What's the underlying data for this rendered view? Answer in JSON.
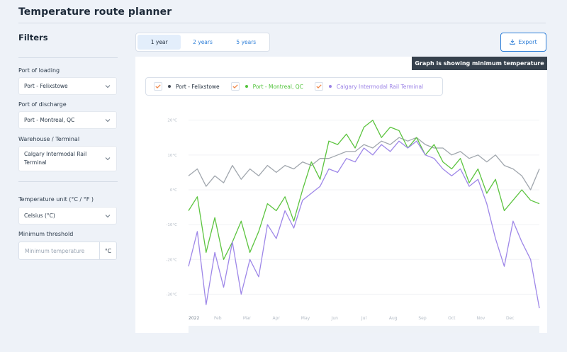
{
  "header": {
    "title": "Temperature route planner"
  },
  "sidebar": {
    "title": "Filters",
    "port_of_loading": {
      "label": "Port of loading",
      "value": "Port - Felixstowe"
    },
    "port_of_discharge": {
      "label": "Port of discharge",
      "value": "Port - Montreal, QC"
    },
    "warehouse": {
      "label": "Warehouse / Terminal",
      "value": "Calgary Intermodal Rail Terminal"
    },
    "temperature_unit": {
      "label": "Temperature unit (°C / °F )",
      "value": "Celsius (°C)"
    },
    "minimum_threshold": {
      "label": "Minimum threshold",
      "placeholder": "Minimum temperature",
      "unit": "°C"
    }
  },
  "tabs": [
    {
      "label": "1 year",
      "active": true
    },
    {
      "label": "2 years",
      "active": false
    },
    {
      "label": "5 years",
      "active": false
    }
  ],
  "export_label": "Export",
  "notice": "Graph is showing minimum temperature",
  "colors": {
    "accent": "#2f7fd8",
    "checkbox": "#f0884a"
  },
  "legend": [
    {
      "name": "Port - Felixstowe",
      "color": "#444b55",
      "text_color": "#1e2b3a"
    },
    {
      "name": "Port - Montreal, QC",
      "color": "#53c43d",
      "text_color": "#53c43d"
    },
    {
      "name": "Calgary Intermodal Rail Terminal",
      "color": "#9b82e6",
      "text_color": "#9b82e6"
    }
  ],
  "chart_data": {
    "type": "line",
    "x_labels": [
      "2022",
      "Feb",
      "Mar",
      "Apr",
      "May",
      "Jun",
      "Jul",
      "Aug",
      "Sep",
      "Oct",
      "Nov",
      "Dec"
    ],
    "y_ticks": [
      "20°C",
      "10°C",
      "0°C",
      "-10°C",
      "-20°C",
      "-30°C"
    ],
    "y_tick_values": [
      20,
      10,
      0,
      -10,
      -20,
      -30
    ],
    "ylim": [
      -35,
      24
    ],
    "x_range": [
      0,
      12
    ],
    "grid": true,
    "series": [
      {
        "name": "Port - Felixstowe",
        "color": "#a0a6ad",
        "values": [
          [
            0,
            4
          ],
          [
            0.3,
            6
          ],
          [
            0.6,
            1
          ],
          [
            0.9,
            4
          ],
          [
            1.2,
            2
          ],
          [
            1.5,
            7
          ],
          [
            1.8,
            3
          ],
          [
            2.1,
            6
          ],
          [
            2.4,
            4
          ],
          [
            2.7,
            7
          ],
          [
            3.0,
            5
          ],
          [
            3.3,
            7
          ],
          [
            3.6,
            6
          ],
          [
            3.9,
            8
          ],
          [
            4.2,
            7
          ],
          [
            4.5,
            9
          ],
          [
            4.8,
            9
          ],
          [
            5.1,
            10
          ],
          [
            5.4,
            11
          ],
          [
            5.7,
            11
          ],
          [
            6.0,
            13
          ],
          [
            6.3,
            12
          ],
          [
            6.6,
            14
          ],
          [
            6.9,
            13
          ],
          [
            7.2,
            15
          ],
          [
            7.5,
            14
          ],
          [
            7.8,
            15
          ],
          [
            8.1,
            13
          ],
          [
            8.4,
            12
          ],
          [
            8.7,
            12
          ],
          [
            9.0,
            10
          ],
          [
            9.3,
            11
          ],
          [
            9.6,
            9
          ],
          [
            9.9,
            10
          ],
          [
            10.2,
            8
          ],
          [
            10.5,
            10
          ],
          [
            10.8,
            7
          ],
          [
            11.1,
            6
          ],
          [
            11.4,
            4
          ],
          [
            11.7,
            0
          ],
          [
            12,
            6
          ]
        ]
      },
      {
        "name": "Port - Montreal, QC",
        "color": "#5cc43f",
        "values": [
          [
            0,
            -6
          ],
          [
            0.3,
            -2
          ],
          [
            0.6,
            -18
          ],
          [
            0.9,
            -8
          ],
          [
            1.2,
            -20
          ],
          [
            1.5,
            -15
          ],
          [
            1.8,
            -9
          ],
          [
            2.1,
            -18
          ],
          [
            2.4,
            -12
          ],
          [
            2.7,
            -4
          ],
          [
            3.0,
            -6
          ],
          [
            3.3,
            -2
          ],
          [
            3.6,
            -9
          ],
          [
            3.9,
            0
          ],
          [
            4.2,
            8
          ],
          [
            4.5,
            3
          ],
          [
            4.8,
            14
          ],
          [
            5.1,
            13
          ],
          [
            5.4,
            16
          ],
          [
            5.7,
            12
          ],
          [
            6.0,
            18
          ],
          [
            6.3,
            20
          ],
          [
            6.6,
            15
          ],
          [
            6.9,
            18
          ],
          [
            7.2,
            17
          ],
          [
            7.5,
            12
          ],
          [
            7.8,
            15
          ],
          [
            8.1,
            10
          ],
          [
            8.4,
            13
          ],
          [
            8.7,
            8
          ],
          [
            9.0,
            6
          ],
          [
            9.3,
            9
          ],
          [
            9.6,
            2
          ],
          [
            9.9,
            6
          ],
          [
            10.2,
            -1
          ],
          [
            10.5,
            3
          ],
          [
            10.8,
            -6
          ],
          [
            11.1,
            -3
          ],
          [
            11.4,
            0
          ],
          [
            11.7,
            -3
          ],
          [
            12,
            -4
          ]
        ]
      },
      {
        "name": "Calgary Intermodal Rail Terminal",
        "color": "#9e87e8",
        "values": [
          [
            0,
            -22
          ],
          [
            0.3,
            -12
          ],
          [
            0.6,
            -33
          ],
          [
            0.9,
            -18
          ],
          [
            1.2,
            -28
          ],
          [
            1.5,
            -15
          ],
          [
            1.8,
            -30
          ],
          [
            2.1,
            -20
          ],
          [
            2.4,
            -25
          ],
          [
            2.7,
            -10
          ],
          [
            3.0,
            -14
          ],
          [
            3.3,
            -6
          ],
          [
            3.6,
            -11
          ],
          [
            3.9,
            -3
          ],
          [
            4.2,
            -1
          ],
          [
            4.5,
            1
          ],
          [
            4.8,
            6
          ],
          [
            5.1,
            5
          ],
          [
            5.4,
            9
          ],
          [
            5.7,
            8
          ],
          [
            6.0,
            12
          ],
          [
            6.3,
            10
          ],
          [
            6.6,
            13
          ],
          [
            6.9,
            11
          ],
          [
            7.2,
            14
          ],
          [
            7.5,
            12
          ],
          [
            7.8,
            14
          ],
          [
            8.1,
            10
          ],
          [
            8.4,
            9
          ],
          [
            8.7,
            6
          ],
          [
            9.0,
            4
          ],
          [
            9.3,
            6
          ],
          [
            9.6,
            1
          ],
          [
            9.9,
            3
          ],
          [
            10.2,
            -4
          ],
          [
            10.5,
            -14
          ],
          [
            10.8,
            -22
          ],
          [
            11.1,
            -9
          ],
          [
            11.4,
            -15
          ],
          [
            11.7,
            -20
          ],
          [
            12,
            -34
          ]
        ]
      }
    ]
  }
}
